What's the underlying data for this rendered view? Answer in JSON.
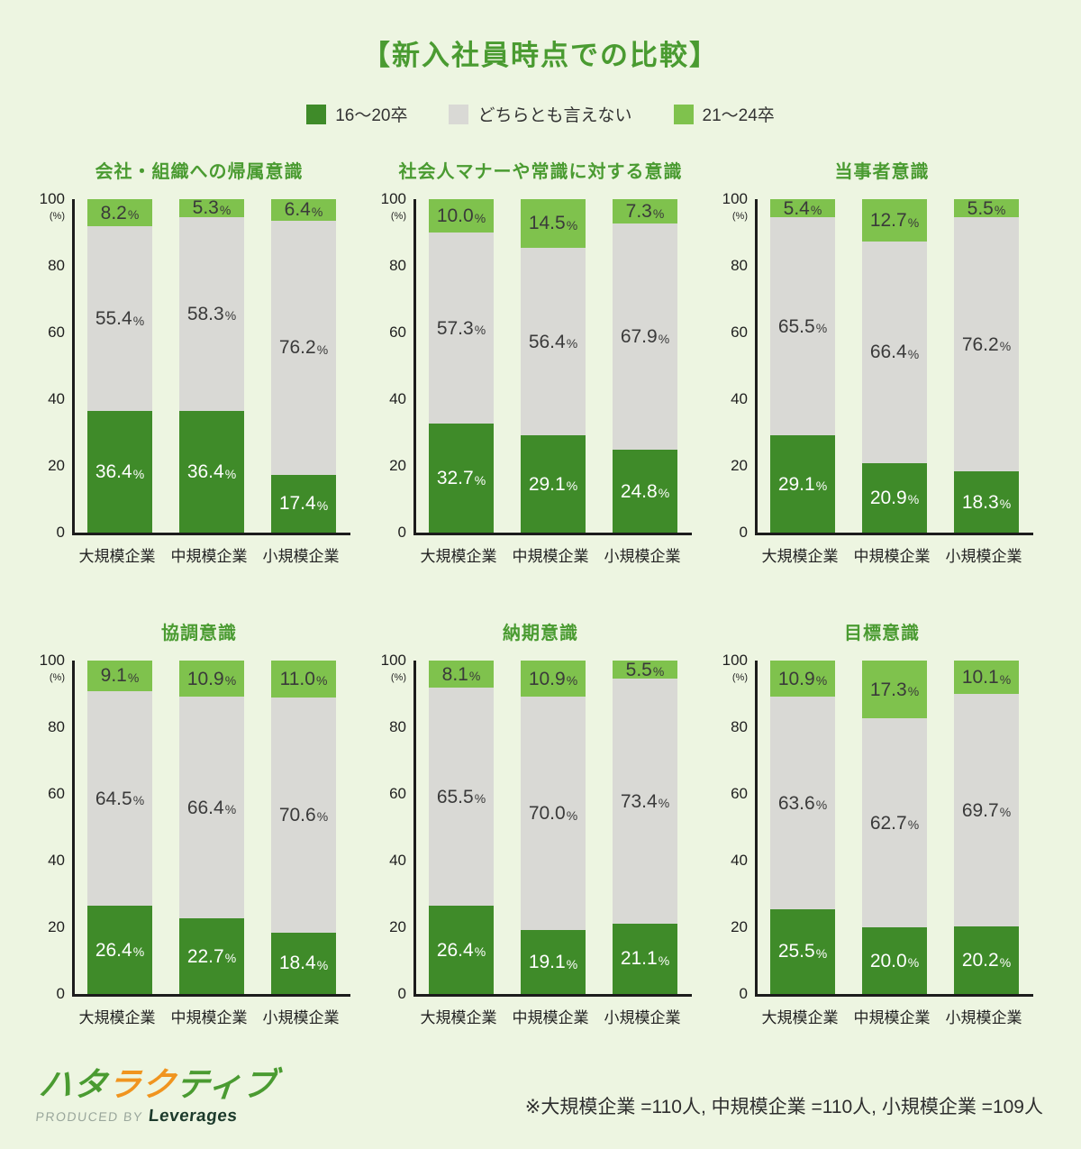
{
  "page": {
    "title": "【新入社員時点での比較】",
    "footnote": "※大規模企業 =110人, 中規模企業 =110人, 小規模企業 =109人"
  },
  "legend": [
    {
      "label": "16〜20卒",
      "color": "#3f8b29"
    },
    {
      "label": "どちらとも言えない",
      "color": "#d9d9d5"
    },
    {
      "label": "21〜24卒",
      "color": "#7fc24d"
    }
  ],
  "logo": {
    "brand": "ハタラクティブ",
    "accent_indices": [
      2,
      3
    ],
    "green": "#4a9b31",
    "orange": "#f0941f",
    "produced_by": "PRODUCED BY",
    "company": "Leverages"
  },
  "chart_data": {
    "type": "bar",
    "stacked": true,
    "ylim": [
      0,
      100
    ],
    "yticks": [
      0,
      20,
      40,
      60,
      80,
      100
    ],
    "y_unit": "(%)",
    "grid": false,
    "legend_position": "top",
    "categories": [
      "大規模企業",
      "中規模企業",
      "小規模企業"
    ],
    "series_names": [
      "16〜20卒",
      "どちらとも言えない",
      "21〜24卒"
    ],
    "charts": [
      {
        "title": "会社・組織への帰属意識",
        "series": [
          {
            "name": "16〜20卒",
            "values": [
              36.4,
              36.4,
              17.4
            ]
          },
          {
            "name": "どちらとも言えない",
            "values": [
              55.4,
              58.3,
              76.2
            ]
          },
          {
            "name": "21〜24卒",
            "values": [
              8.2,
              5.3,
              6.4
            ]
          }
        ]
      },
      {
        "title": "社会人マナーや常識に対する意識",
        "series": [
          {
            "name": "16〜20卒",
            "values": [
              32.7,
              29.1,
              24.8
            ]
          },
          {
            "name": "どちらとも言えない",
            "values": [
              57.3,
              56.4,
              67.9
            ]
          },
          {
            "name": "21〜24卒",
            "values": [
              10.0,
              14.5,
              7.3
            ]
          }
        ]
      },
      {
        "title": "当事者意識",
        "series": [
          {
            "name": "16〜20卒",
            "values": [
              29.1,
              20.9,
              18.3
            ]
          },
          {
            "name": "どちらとも言えない",
            "values": [
              65.5,
              66.4,
              76.2
            ]
          },
          {
            "name": "21〜24卒",
            "values": [
              5.4,
              12.7,
              5.5
            ]
          }
        ]
      },
      {
        "title": "協調意識",
        "series": [
          {
            "name": "16〜20卒",
            "values": [
              26.4,
              22.7,
              18.4
            ]
          },
          {
            "name": "どちらとも言えない",
            "values": [
              64.5,
              66.4,
              70.6
            ]
          },
          {
            "name": "21〜24卒",
            "values": [
              9.1,
              10.9,
              11.0
            ]
          }
        ]
      },
      {
        "title": "納期意識",
        "series": [
          {
            "name": "16〜20卒",
            "values": [
              26.4,
              19.1,
              21.1
            ]
          },
          {
            "name": "どちらとも言えない",
            "values": [
              65.5,
              70.0,
              73.4
            ]
          },
          {
            "name": "21〜24卒",
            "values": [
              8.1,
              10.9,
              5.5
            ]
          }
        ]
      },
      {
        "title": "目標意識",
        "series": [
          {
            "name": "16〜20卒",
            "values": [
              25.5,
              20.0,
              20.2
            ]
          },
          {
            "name": "どちらとも言えない",
            "values": [
              63.6,
              62.7,
              69.7
            ]
          },
          {
            "name": "21〜24卒",
            "values": [
              10.9,
              17.3,
              10.1
            ]
          }
        ]
      }
    ]
  }
}
